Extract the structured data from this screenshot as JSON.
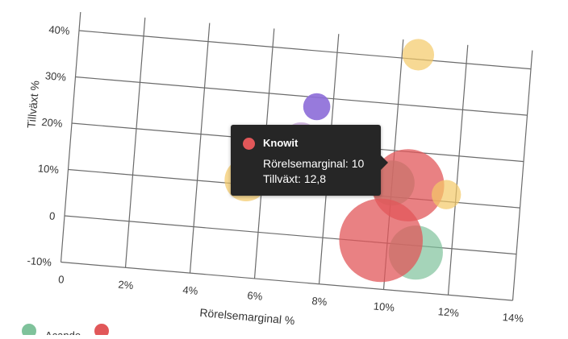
{
  "chart_data": {
    "type": "scatter",
    "xlabel": "Rörelsemarginal %",
    "ylabel": "Tillväxt %",
    "xlim": [
      0,
      14
    ],
    "ylim": [
      -10,
      44
    ],
    "x_ticks": [
      {
        "value": 0,
        "label": "0"
      },
      {
        "value": 2,
        "label": "2%"
      },
      {
        "value": 4,
        "label": "4%"
      },
      {
        "value": 6,
        "label": "6%"
      },
      {
        "value": 8,
        "label": "8%"
      },
      {
        "value": 10,
        "label": "10%"
      },
      {
        "value": 12,
        "label": "12%"
      },
      {
        "value": 14,
        "label": "14%"
      }
    ],
    "y_ticks": [
      {
        "value": -10,
        "label": "-10%"
      },
      {
        "value": 0,
        "label": "0"
      },
      {
        "value": 10,
        "label": "10%"
      },
      {
        "value": 20,
        "label": "20%"
      },
      {
        "value": 30,
        "label": "30%"
      },
      {
        "value": 40,
        "label": "40%"
      }
    ],
    "grid": true,
    "series": [
      {
        "name": "Acando",
        "color": "#7fc29b",
        "opacity": 0.7,
        "points": [
          {
            "x": 10,
            "y": 13,
            "r": 1.0
          },
          {
            "x": 10.9,
            "y": -1.5,
            "r": 1.2
          }
        ]
      },
      {
        "name": "Knowit",
        "color": "#e15759",
        "opacity": 0.75,
        "points": [
          {
            "x": 9.8,
            "y": 0.5,
            "r": 1.85
          },
          {
            "x": 10.5,
            "y": 12.8,
            "r": 1.6
          }
        ]
      },
      {
        "name": "",
        "color": "#f4c967",
        "opacity": 0.7,
        "points": [
          {
            "x": 10.5,
            "y": 41,
            "r": 0.7
          },
          {
            "x": 5.5,
            "y": 11,
            "r": 0.95
          },
          {
            "x": 11.7,
            "y": 11.5,
            "r": 0.65
          }
        ]
      },
      {
        "name": "",
        "color": "#8c6bd8",
        "opacity": 0.9,
        "points": [
          {
            "x": 7.5,
            "y": 28,
            "r": 0.6
          }
        ]
      },
      {
        "name": "",
        "color": "#c7a7da",
        "opacity": 0.75,
        "points": [
          {
            "x": 7.1,
            "y": 20.5,
            "r": 0.8
          }
        ]
      }
    ],
    "tooltip": {
      "title": "Knowit",
      "color": "#e15759",
      "line1": "Rörelsemarginal: 10",
      "line2": "Tillväxt: 12,8"
    }
  }
}
